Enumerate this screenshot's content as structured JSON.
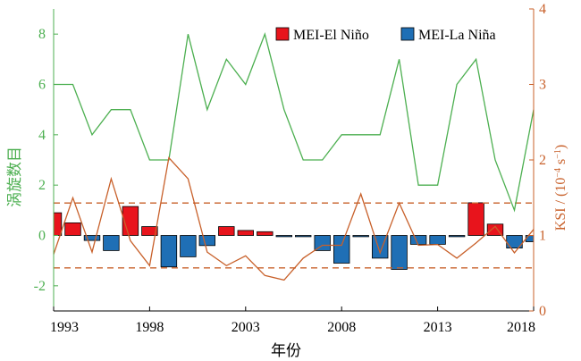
{
  "chart_data": {
    "type": "bar",
    "xlabel": "年份",
    "ylabel_left": "涡旋数目",
    "ylabel_right_parts": {
      "prefix": "KSI / (10",
      "exp1": "−4",
      "mid": " s",
      "exp2": "−1",
      "suffix": ")"
    },
    "x_ticks": [
      "1993",
      "1998",
      "2003",
      "2008",
      "2013",
      "2018"
    ],
    "y_left_ticks": [
      "-2",
      "0",
      "2",
      "4",
      "6",
      "8"
    ],
    "y_right_ticks": [
      "0",
      "1",
      "2",
      "3",
      "4"
    ],
    "ylim_left": [
      -3,
      9
    ],
    "ylim_right": [
      0,
      4
    ],
    "xlim": [
      1993,
      2018
    ],
    "legend": {
      "placement": "top-right",
      "el_nino": "MEI-El Niño",
      "la_nina": "MEI-La Niña"
    },
    "colors": {
      "el_nino": "#e8141c",
      "la_nina": "#1f6fb5",
      "vortex_line": "#4caf50",
      "ksi_line": "#c8602a",
      "threshold": "#c8602a",
      "left_axis": "#4caf50",
      "right_axis": "#c8602a"
    },
    "threshold_lines_right_axis": [
      1.43,
      0.57
    ],
    "mei": {
      "x": [
        1993,
        1994,
        1995,
        1996,
        1997,
        1998,
        1999,
        2000,
        2001,
        2002,
        2003,
        2004,
        2005,
        2006,
        2007,
        2008,
        2009,
        2010,
        2011,
        2012,
        2013,
        2014,
        2015,
        2016,
        2017,
        2018
      ],
      "values": [
        0.9,
        0.5,
        -0.2,
        -0.6,
        1.15,
        0.35,
        -1.25,
        -0.85,
        -0.4,
        0.35,
        0.2,
        0.15,
        -0.05,
        -0.05,
        -0.6,
        -1.1,
        -0.05,
        -0.9,
        -1.35,
        -0.35,
        -0.35,
        -0.05,
        1.3,
        0.45,
        -0.5,
        -0.25
      ]
    },
    "series": [
      {
        "name": "vortex_count",
        "axis": "left",
        "x": [
          1993,
          1994,
          1995,
          1996,
          1997,
          1998,
          1999,
          2000,
          2001,
          2002,
          2003,
          2004,
          2005,
          2006,
          2007,
          2008,
          2009,
          2010,
          2011,
          2012,
          2013,
          2014,
          2015,
          2016,
          2017,
          2018
        ],
        "values": [
          6,
          6,
          4,
          5,
          5,
          3,
          3,
          8,
          5,
          7,
          6,
          8,
          5,
          3,
          3,
          4,
          4,
          4,
          7,
          2,
          2,
          6,
          7,
          3,
          1,
          5
        ]
      },
      {
        "name": "ksi",
        "axis": "right",
        "x": [
          1993,
          1994,
          1995,
          1996,
          1997,
          1998,
          1999,
          2000,
          2001,
          2002,
          2003,
          2004,
          2005,
          2006,
          2007,
          2008,
          2009,
          2010,
          2011,
          2012,
          2013,
          2014,
          2015,
          2016,
          2017,
          2018
        ],
        "values": [
          0.75,
          1.5,
          0.78,
          1.75,
          0.93,
          0.6,
          2.03,
          1.75,
          0.78,
          0.6,
          0.73,
          0.47,
          0.41,
          0.7,
          0.87,
          0.87,
          1.55,
          0.77,
          1.43,
          0.87,
          0.88,
          0.7,
          0.9,
          1.12,
          0.77,
          1.08
        ]
      }
    ]
  }
}
